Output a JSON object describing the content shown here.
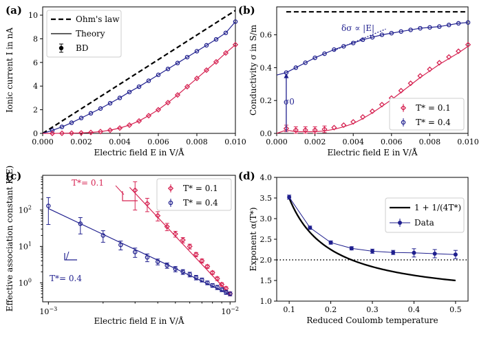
{
  "colors": {
    "red": "#d62352",
    "blue": "#1f1f8e",
    "black": "#000000"
  },
  "chart_data": [
    {
      "panel": "(a)",
      "type": "line",
      "xlabel": "Electric field E in V/Å",
      "ylabel": "Ionic current I in nA",
      "xlim": [
        0,
        0.01
      ],
      "ylim": [
        0,
        10.7
      ],
      "xticks": [
        0,
        0.002,
        0.004,
        0.006,
        0.008,
        0.01
      ],
      "xtick_labels": [
        "0.000",
        "0.002",
        "0.004",
        "0.006",
        "0.008",
        "0.010"
      ],
      "yticks": [
        0,
        2,
        4,
        6,
        8,
        10
      ],
      "ytick_labels": [
        "0",
        "2",
        "4",
        "6",
        "8",
        "10"
      ],
      "legend": {
        "position": "top-left",
        "entries": [
          "Ohm's law",
          "Theory",
          "BD"
        ]
      },
      "ohm_line": {
        "x": [
          0,
          0.01
        ],
        "y": [
          0,
          10.4
        ]
      },
      "series": [
        {
          "name": "T* = 0.4",
          "color": "blue",
          "x": [
            0.0005,
            0.001,
            0.0015,
            0.002,
            0.0025,
            0.003,
            0.0035,
            0.004,
            0.0045,
            0.005,
            0.0055,
            0.006,
            0.0065,
            0.007,
            0.0075,
            0.008,
            0.0085,
            0.009,
            0.0095,
            0.01
          ],
          "y": [
            0.25,
            0.55,
            0.9,
            1.3,
            1.7,
            2.1,
            2.55,
            3.0,
            3.5,
            3.95,
            4.45,
            4.95,
            5.45,
            5.95,
            6.45,
            6.95,
            7.45,
            7.95,
            8.5,
            9.45
          ]
        },
        {
          "name": "T* = 0.1",
          "color": "red",
          "x": [
            0.0005,
            0.001,
            0.0015,
            0.002,
            0.0025,
            0.003,
            0.0035,
            0.004,
            0.0045,
            0.005,
            0.0055,
            0.006,
            0.0065,
            0.007,
            0.0075,
            0.008,
            0.0085,
            0.009,
            0.0095,
            0.01
          ],
          "y": [
            0.0,
            0.01,
            0.02,
            0.04,
            0.08,
            0.15,
            0.27,
            0.45,
            0.7,
            1.05,
            1.5,
            2.0,
            2.6,
            3.25,
            3.95,
            4.65,
            5.35,
            6.05,
            6.8,
            7.5
          ]
        }
      ]
    },
    {
      "panel": "(b)",
      "type": "line",
      "xlabel": "Electric field E in V/Å",
      "ylabel": "Conductivity σ in S/m",
      "xlim": [
        0,
        0.01
      ],
      "ylim": [
        0,
        0.77
      ],
      "xticks": [
        0,
        0.002,
        0.004,
        0.006,
        0.008,
        0.01
      ],
      "xtick_labels": [
        "0.000",
        "0.002",
        "0.004",
        "0.006",
        "0.008",
        "0.010"
      ],
      "yticks": [
        0,
        0.2,
        0.4,
        0.6
      ],
      "ytick_labels": [
        "0.0",
        "0.2",
        "0.4",
        "0.6"
      ],
      "legend": {
        "position": "bottom-right",
        "entries": [
          "T* = 0.1",
          "T* = 0.4"
        ]
      },
      "ohm_value": 0.74,
      "annotations": {
        "slope": "δσ ∝ |E|",
        "sigma0": "σ0"
      },
      "series": [
        {
          "name": "T* = 0.4",
          "color": "blue",
          "x": [
            0.0005,
            0.001,
            0.0015,
            0.002,
            0.0025,
            0.003,
            0.0035,
            0.004,
            0.0045,
            0.005,
            0.0055,
            0.006,
            0.0065,
            0.007,
            0.0075,
            0.008,
            0.0085,
            0.009,
            0.0095,
            0.01
          ],
          "y": [
            0.37,
            0.4,
            0.43,
            0.46,
            0.485,
            0.51,
            0.53,
            0.55,
            0.57,
            0.585,
            0.6,
            0.61,
            0.62,
            0.63,
            0.64,
            0.645,
            0.65,
            0.66,
            0.67,
            0.675
          ]
        },
        {
          "name": "T* = 0.1",
          "color": "red",
          "x": [
            0.0005,
            0.001,
            0.0015,
            0.002,
            0.0025,
            0.003,
            0.0035,
            0.004,
            0.0045,
            0.005,
            0.0055,
            0.006,
            0.0065,
            0.007,
            0.0075,
            0.008,
            0.0085,
            0.009,
            0.0095,
            0.01
          ],
          "y": [
            0.03,
            0.02,
            0.02,
            0.02,
            0.025,
            0.035,
            0.05,
            0.07,
            0.1,
            0.135,
            0.175,
            0.215,
            0.26,
            0.305,
            0.35,
            0.39,
            0.43,
            0.465,
            0.5,
            0.54
          ]
        }
      ]
    },
    {
      "panel": "(c)",
      "type": "scatter",
      "xlabel": "Electric field E in V/Å",
      "ylabel": "Effective association constant K(E)",
      "xscale": "log",
      "yscale": "log",
      "xlim": [
        0.00093,
        0.0107
      ],
      "ylim": [
        0.3,
        900
      ],
      "xticks": [
        0.001,
        0.01
      ],
      "xtick_labels": [
        "10",
        "10"
      ],
      "xtick_exponents": [
        "−3",
        "−2"
      ],
      "yticks": [
        1,
        10,
        100
      ],
      "ytick_labels": [
        "10",
        "10",
        "10"
      ],
      "ytick_exponents": [
        "0",
        "1",
        "2"
      ],
      "legend": {
        "position": "top-right",
        "entries": [
          "T* = 0.1",
          "T* = 0.4"
        ]
      },
      "annotations": {
        "t01": "T*= 0.1",
        "t04": "T*= 0.4"
      },
      "series": [
        {
          "name": "T* = 0.1",
          "color": "red",
          "x": [
            0.003,
            0.0035,
            0.004,
            0.0045,
            0.005,
            0.0055,
            0.006,
            0.0065,
            0.007,
            0.0075,
            0.008,
            0.0085,
            0.009,
            0.0095,
            0.01
          ],
          "y": [
            350,
            150,
            70,
            35,
            22,
            15,
            10,
            6,
            4,
            2.8,
            1.9,
            1.3,
            0.9,
            0.7,
            0.5
          ],
          "err": [
            250,
            60,
            20,
            8,
            4,
            2.5,
            1.5,
            0.8,
            0.5,
            0.3,
            0.2,
            0.15,
            0.1,
            0.08,
            0.06
          ]
        },
        {
          "name": "T* = 0.4",
          "color": "blue",
          "x": [
            0.001,
            0.0015,
            0.002,
            0.0025,
            0.003,
            0.0035,
            0.004,
            0.0045,
            0.005,
            0.0055,
            0.006,
            0.0065,
            0.007,
            0.0075,
            0.008,
            0.0085,
            0.009,
            0.0095,
            0.01
          ],
          "y": [
            130,
            42,
            20,
            11,
            7,
            5,
            3.8,
            3,
            2.4,
            2,
            1.7,
            1.4,
            1.2,
            1.0,
            0.85,
            0.75,
            0.65,
            0.55,
            0.5
          ],
          "err": [
            90,
            20,
            7,
            3,
            2,
            1.2,
            0.7,
            0.5,
            0.4,
            0.3,
            0.25,
            0.2,
            0.15,
            0.12,
            0.1,
            0.1,
            0.08,
            0.07,
            0.06
          ]
        }
      ]
    },
    {
      "panel": "(d)",
      "type": "line",
      "xlabel": "Reduced Coulomb temperature",
      "ylabel": "Exponent α(T*)",
      "xlim": [
        0.07,
        0.53
      ],
      "ylim": [
        1.0,
        4.0
      ],
      "xticks": [
        0.1,
        0.2,
        0.3,
        0.4,
        0.5
      ],
      "xtick_labels": [
        "0.1",
        "0.2",
        "0.3",
        "0.4",
        "0.5"
      ],
      "yticks": [
        1.0,
        1.5,
        2.0,
        2.5,
        3.0,
        3.5,
        4.0
      ],
      "ytick_labels": [
        "1.0",
        "1.5",
        "2.0",
        "2.5",
        "3.0",
        "3.5",
        "4.0"
      ],
      "legend": {
        "position": "top-right",
        "entries": [
          "1 + 1/(4T*)",
          "Data"
        ]
      },
      "reference_y": 2.0,
      "series": [
        {
          "name": "Data",
          "color": "blue",
          "x": [
            0.1,
            0.15,
            0.2,
            0.25,
            0.3,
            0.35,
            0.4,
            0.45,
            0.5
          ],
          "y": [
            3.52,
            2.78,
            2.42,
            2.28,
            2.21,
            2.18,
            2.17,
            2.15,
            2.13
          ],
          "err": [
            0.05,
            0.04,
            0.04,
            0.04,
            0.05,
            0.05,
            0.1,
            0.1,
            0.1
          ]
        }
      ]
    }
  ]
}
